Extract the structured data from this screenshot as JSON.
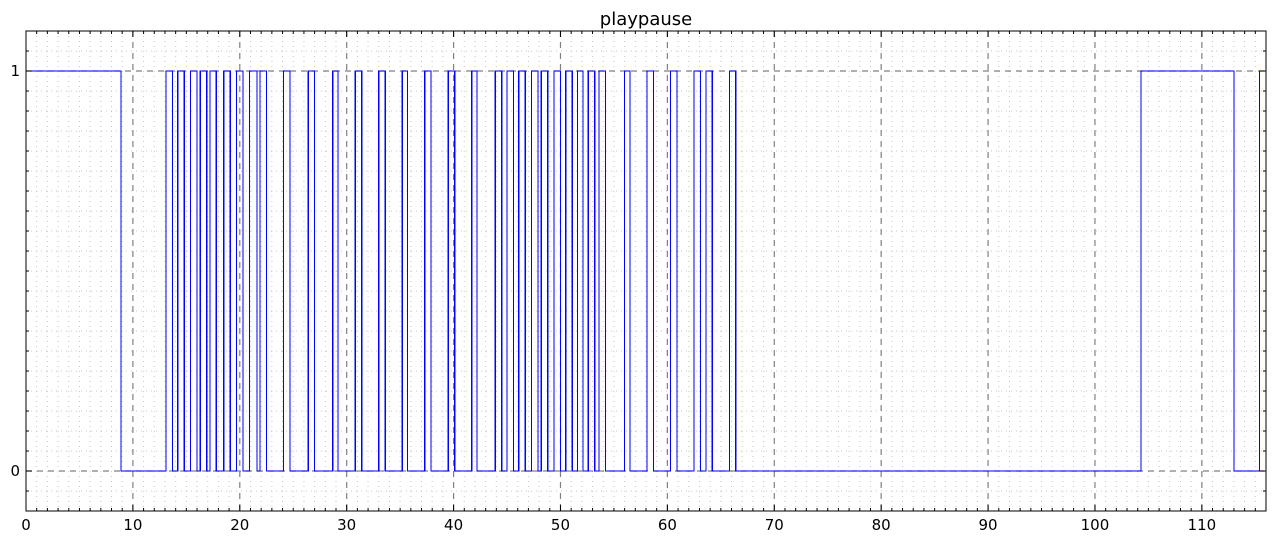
{
  "chart_data": {
    "type": "line",
    "step": true,
    "title": "playpause",
    "xlabel": "",
    "ylabel": "",
    "xlim": [
      0,
      116
    ],
    "ylim": [
      -0.1,
      1.1
    ],
    "x_ticks": [
      0,
      10,
      20,
      30,
      40,
      50,
      60,
      70,
      80,
      90,
      100,
      110
    ],
    "y_ticks": [
      0,
      1
    ],
    "x_tick_labels": [
      "0",
      "10",
      "20",
      "30",
      "40",
      "50",
      "60",
      "70",
      "80",
      "90",
      "100",
      "110"
    ],
    "y_tick_labels": [
      "0",
      "1"
    ],
    "grid": {
      "major": true,
      "minor": true,
      "style": "dashed"
    },
    "colors": {
      "series": "#0000ff",
      "grid_major": "#808080",
      "grid_minor": "#c8c8c8"
    },
    "series": [
      {
        "values": [
          [
            0,
            1
          ],
          [
            8.9,
            0
          ],
          [
            13.1,
            1
          ],
          [
            13.7,
            0
          ],
          [
            14.2,
            1
          ],
          [
            14.8,
            0
          ],
          [
            15.4,
            1
          ],
          [
            16.0,
            0
          ],
          [
            16.3,
            1
          ],
          [
            16.9,
            0
          ],
          [
            17.2,
            1
          ],
          [
            17.8,
            0
          ],
          [
            18.5,
            1
          ],
          [
            19.1,
            0
          ],
          [
            19.7,
            1
          ],
          [
            20.3,
            0
          ],
          [
            20.9,
            1
          ],
          [
            21.6,
            0
          ],
          [
            21.9,
            1
          ],
          [
            22.5,
            0
          ],
          [
            24.1,
            1
          ],
          [
            24.7,
            0
          ],
          [
            26.4,
            1
          ],
          [
            27.0,
            0
          ],
          [
            28.7,
            1
          ],
          [
            29.2,
            0
          ],
          [
            30.8,
            1
          ],
          [
            31.4,
            0
          ],
          [
            33.0,
            1
          ],
          [
            33.6,
            0
          ],
          [
            35.2,
            1
          ],
          [
            35.7,
            0
          ],
          [
            37.3,
            1
          ],
          [
            37.9,
            0
          ],
          [
            39.5,
            1
          ],
          [
            40.1,
            0
          ],
          [
            41.7,
            1
          ],
          [
            42.2,
            0
          ],
          [
            43.9,
            1
          ],
          [
            44.5,
            0
          ],
          [
            45.0,
            1
          ],
          [
            45.6,
            0
          ],
          [
            46.1,
            1
          ],
          [
            46.7,
            0
          ],
          [
            47.3,
            1
          ],
          [
            47.9,
            0
          ],
          [
            48.2,
            1
          ],
          [
            48.8,
            0
          ],
          [
            49.4,
            1
          ],
          [
            50.0,
            0
          ],
          [
            50.5,
            1
          ],
          [
            51.1,
            0
          ],
          [
            51.6,
            1
          ],
          [
            52.1,
            0
          ],
          [
            52.6,
            1
          ],
          [
            53.2,
            0
          ],
          [
            53.6,
            1
          ],
          [
            54.2,
            0
          ],
          [
            56.0,
            1
          ],
          [
            56.5,
            0
          ],
          [
            58.1,
            1
          ],
          [
            58.7,
            0
          ],
          [
            60.3,
            1
          ],
          [
            60.9,
            0
          ],
          [
            62.5,
            1
          ],
          [
            63.1,
            0
          ],
          [
            63.6,
            1
          ],
          [
            64.2,
            0
          ],
          [
            65.8,
            1
          ],
          [
            66.4,
            0
          ],
          [
            104.3,
            1
          ],
          [
            113.0,
            0
          ],
          [
            115.4,
            1
          ],
          [
            116,
            1
          ]
        ]
      }
    ]
  }
}
